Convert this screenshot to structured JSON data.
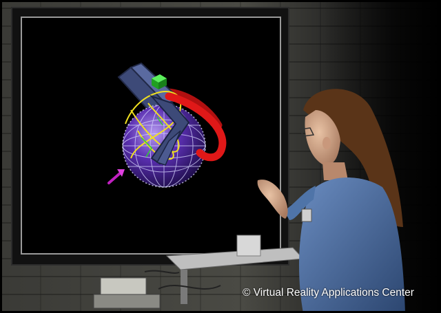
{
  "caption": {
    "text": "© Virtual Reality Applications Center"
  },
  "colors": {
    "sphere": "#5a2fb0",
    "ring_red": "#e01818",
    "frame_gray": "#3d4a78",
    "trajectory_yellow": "#f0e020",
    "cube_green": "#20c020",
    "pointer_magenta": "#c020c0",
    "shirt_blue": "#4f74a8",
    "hair_brown": "#5a3418"
  }
}
